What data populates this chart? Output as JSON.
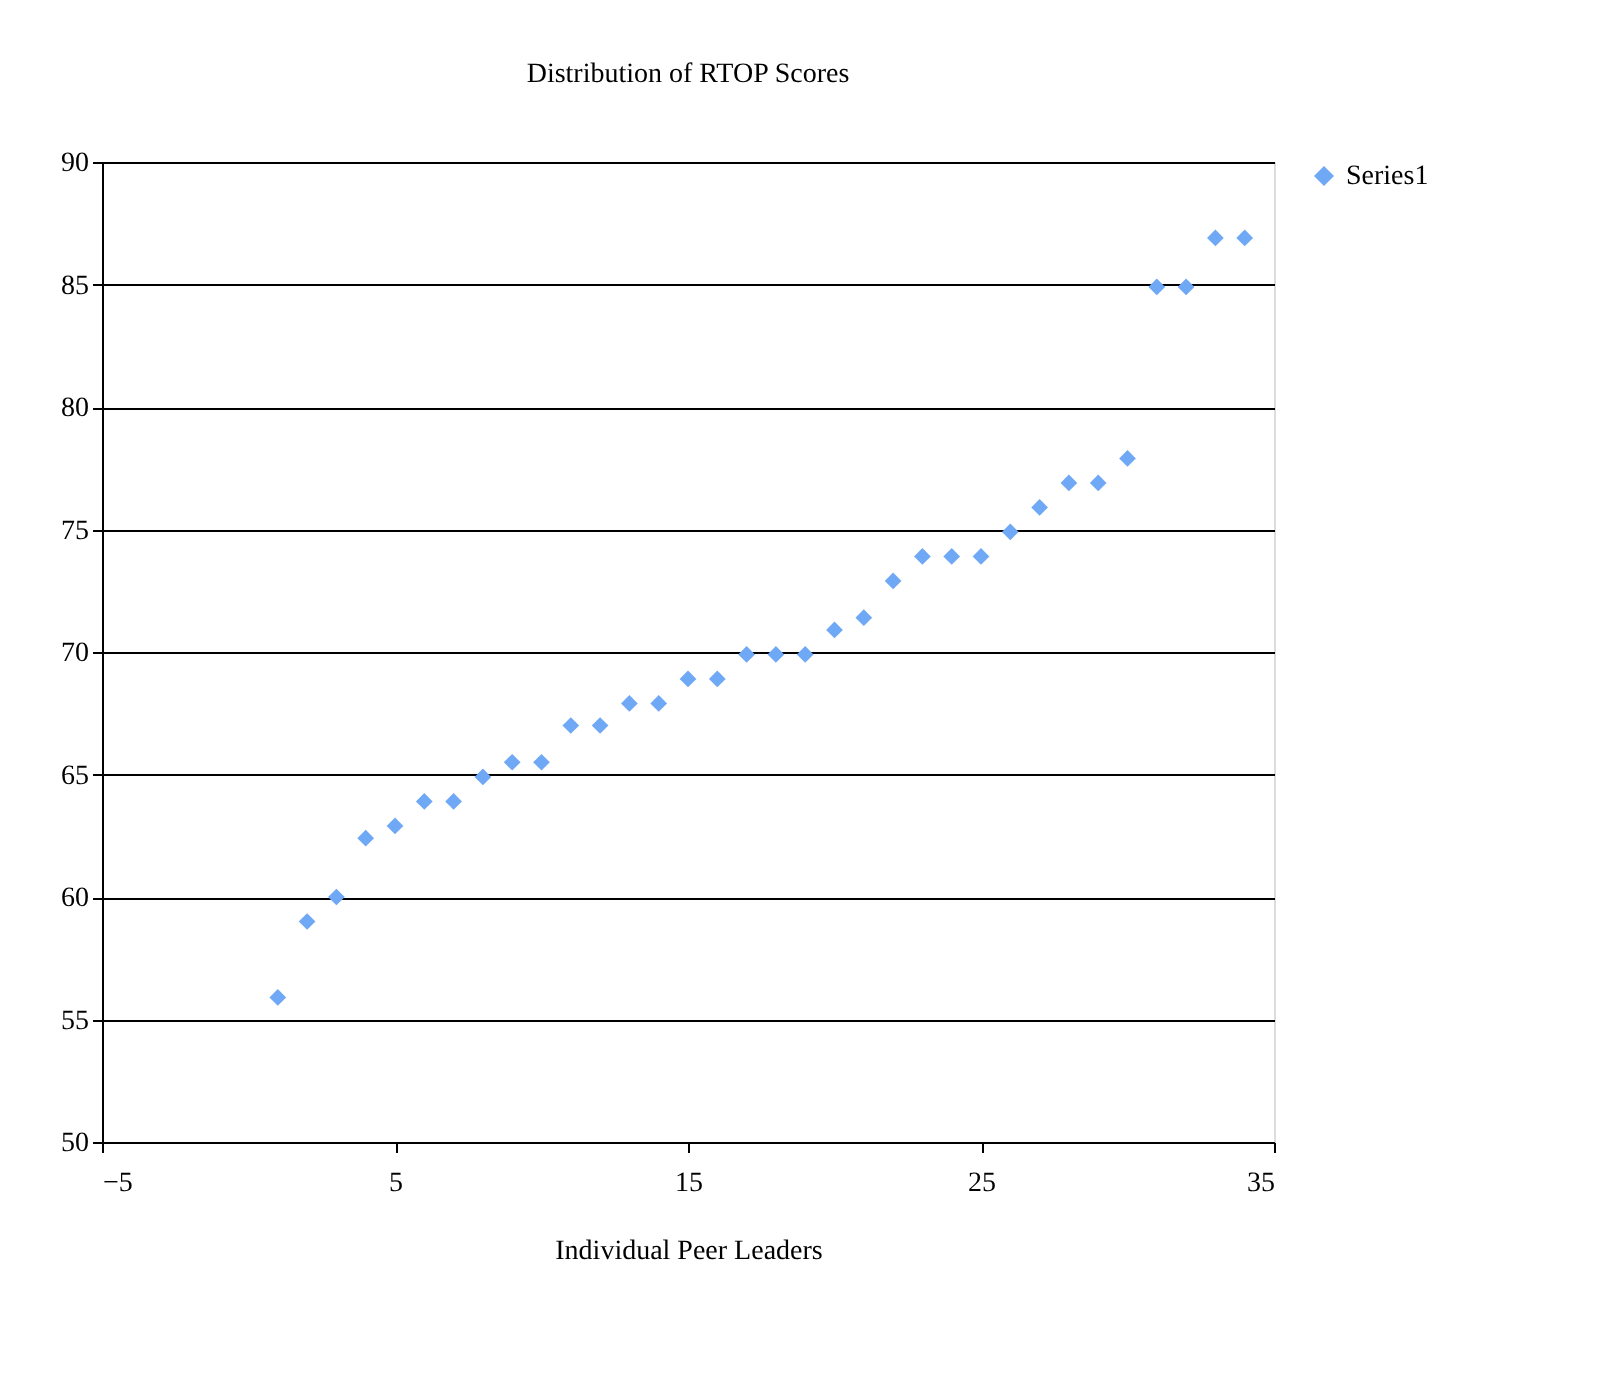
{
  "chart_data": {
    "type": "scatter",
    "title": "Distribution of RTOP Scores",
    "xlabel": "Individual Peer Leaders",
    "x": [
      1,
      2,
      3,
      4,
      5,
      6,
      7,
      8,
      9,
      10,
      11,
      12,
      13,
      14,
      15,
      16,
      17,
      18,
      19,
      20,
      21,
      22,
      23,
      24,
      25,
      26,
      27,
      28,
      29,
      30,
      31,
      32,
      33,
      34
    ],
    "series": [
      {
        "name": "Series1",
        "color": "#6fa8f5",
        "values": [
          55.9,
          59,
          60,
          62.4,
          62.9,
          63.9,
          63.9,
          64.9,
          65.5,
          65.5,
          67,
          67,
          67.9,
          67.9,
          68.9,
          68.9,
          69.9,
          69.9,
          69.9,
          70.9,
          71.4,
          72.9,
          73.9,
          73.9,
          73.9,
          74.9,
          75.9,
          76.9,
          76.9,
          77.9,
          84.9,
          84.9,
          86.9,
          86.9
        ]
      }
    ],
    "xlim": [
      -5,
      35
    ],
    "xticks": [
      -5,
      5,
      15,
      25,
      35
    ],
    "ylim": [
      50,
      90
    ],
    "yticks": [
      50,
      55,
      60,
      65,
      70,
      75,
      80,
      85,
      90
    ],
    "grid": "y",
    "legend": "right",
    "marker": "diamond"
  }
}
